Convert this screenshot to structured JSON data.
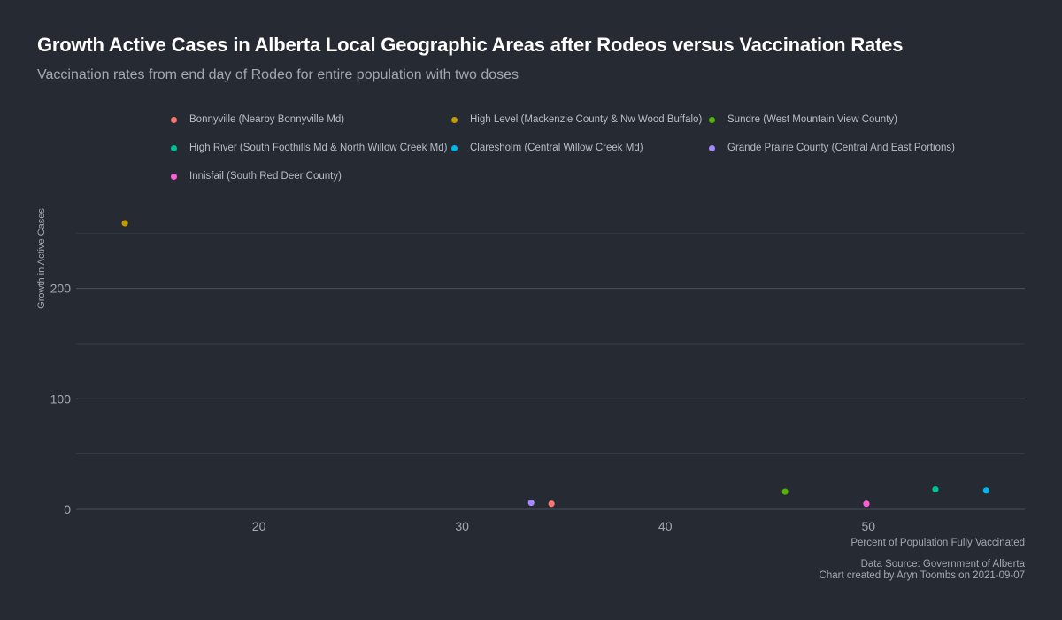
{
  "title": "Growth Active Cases in Alberta Local Geographic Areas after Rodeos versus Vaccination Rates",
  "subtitle": "Vaccination rates from end day of Rodeo for entire population with two doses",
  "caption": {
    "line1": "Data Source: Government of Alberta",
    "line2": "Chart created by Aryn Toombs on 2021-09-07"
  },
  "chart_data": {
    "type": "scatter",
    "xlabel": "Percent of Population Fully Vaccinated",
    "ylabel": "Growth in Active Cases",
    "xlim": [
      11,
      57.7
    ],
    "ylim": [
      0,
      259
    ],
    "xticks": [
      20,
      30,
      40,
      50
    ],
    "yticks": [
      0,
      100,
      200
    ],
    "grid": true,
    "legend_position": "top",
    "series": [
      {
        "name": "Bonnyville (Nearby Bonnyville Md)",
        "color": "#f8766d",
        "x": 34.4,
        "y": 5
      },
      {
        "name": "High Level (Mackenzie County & Nw Wood Buffalo)",
        "color": "#c49a00",
        "x": 13.4,
        "y": 259
      },
      {
        "name": "Sundre (West Mountain View County)",
        "color": "#53b400",
        "x": 45.9,
        "y": 16
      },
      {
        "name": "High River (South Foothills Md & North Willow Creek Md)",
        "color": "#00c094",
        "x": 53.3,
        "y": 18
      },
      {
        "name": "Claresholm (Central Willow Creek Md)",
        "color": "#00b6eb",
        "x": 55.8,
        "y": 17
      },
      {
        "name": "Grande Prairie County (Central And East Portions)",
        "color": "#a58aff",
        "x": 33.4,
        "y": 6
      },
      {
        "name": "Innisfail (South Red Deer County)",
        "color": "#fb61d7",
        "x": 49.9,
        "y": 5
      }
    ]
  }
}
